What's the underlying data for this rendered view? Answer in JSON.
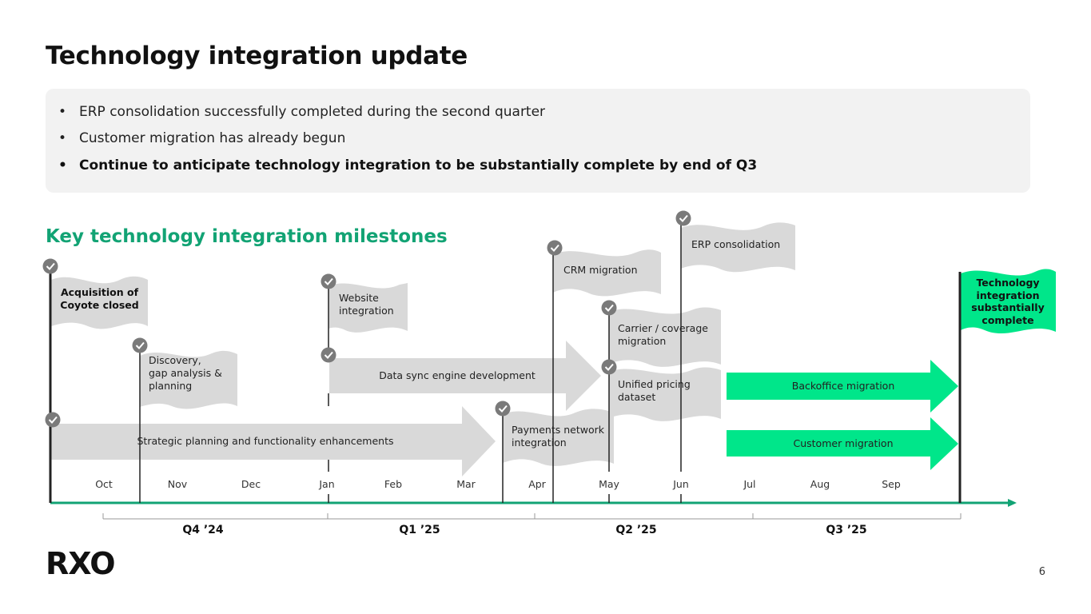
{
  "title": "Technology integration update",
  "summary": {
    "bullets": [
      "ERP consolidation successfully completed during the second quarter",
      "Customer migration has already begun",
      "Continue to anticipate technology integration to be substantially complete by end of Q3"
    ]
  },
  "milestones_title": "Key technology integration milestones",
  "flags": {
    "acquisition": "Acquisition of\nCoyote closed",
    "discovery": "Discovery,\ngap analysis &\nplanning",
    "website": "Website\nintegration",
    "crm": "CRM migration",
    "erp": "ERP consolidation",
    "carrier": "Carrier / coverage\nmigration",
    "pricing": "Unified pricing\ndataset",
    "payments": "Payments network\nintegration",
    "complete": "Technology\nintegration\nsubstantially\ncomplete"
  },
  "arrows": {
    "strategic": "Strategic planning and functionality enhancements",
    "datasync": "Data sync engine development",
    "backoffice": "Backoffice migration",
    "customer": "Customer migration"
  },
  "months": [
    "Oct",
    "Nov",
    "Dec",
    "Jan",
    "Feb",
    "Mar",
    "Apr",
    "May",
    "Jun",
    "Jul",
    "Aug",
    "Sep"
  ],
  "quarters": [
    "Q4 ’24",
    "Q1 ’25",
    "Q2 ’25",
    "Q3 ’25"
  ],
  "logo": "RXO",
  "page_number": "6",
  "colors": {
    "accent": "#12a374",
    "bright_green": "#00e68a",
    "gray": "#d9d9d9",
    "check": "#7a7a7a",
    "axis": "#12a374"
  },
  "icons": [
    "check-icon"
  ]
}
